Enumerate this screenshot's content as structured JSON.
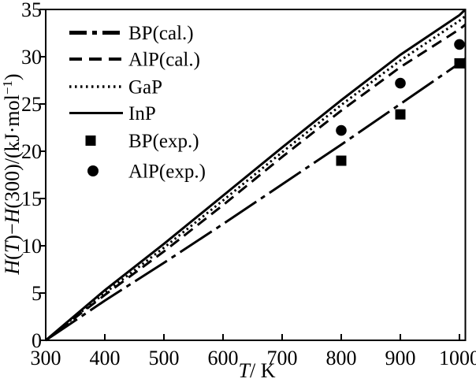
{
  "figure": {
    "background_color": "#ffffff",
    "ink_color": "#000000"
  },
  "chart_data": {
    "type": "line",
    "xlabel": "T/ K",
    "ylabel": "H(T)−H(300)/(kJ·mol−1)",
    "xlim": [
      300,
      1010
    ],
    "ylim": [
      0,
      35
    ],
    "x_ticks": [
      300,
      400,
      500,
      600,
      700,
      800,
      900,
      1000
    ],
    "y_ticks": [
      0,
      5,
      10,
      15,
      20,
      25,
      30,
      35
    ],
    "grid": false,
    "legend_position": "top-left-inside",
    "series": [
      {
        "name": "BP(cal.)",
        "style": "dashdot",
        "x": [
          300,
          400,
          500,
          600,
          700,
          800,
          900,
          1000,
          1010
        ],
        "y": [
          0,
          4.2,
          8.2,
          12.3,
          16.5,
          20.7,
          25.0,
          29.3,
          29.8
        ]
      },
      {
        "name": "AlP(cal.)",
        "style": "dashed",
        "x": [
          300,
          400,
          500,
          600,
          700,
          800,
          900,
          1000,
          1010
        ],
        "y": [
          0,
          4.8,
          9.4,
          14.3,
          19.4,
          24.3,
          28.9,
          32.9,
          33.4
        ]
      },
      {
        "name": "GaP",
        "style": "dotted",
        "x": [
          300,
          400,
          500,
          600,
          700,
          800,
          900,
          1000,
          1010
        ],
        "y": [
          0,
          5.0,
          9.8,
          14.8,
          19.9,
          24.9,
          29.6,
          33.8,
          34.3
        ]
      },
      {
        "name": "InP",
        "style": "solid",
        "x": [
          300,
          400,
          500,
          600,
          700,
          800,
          900,
          1000,
          1010
        ],
        "y": [
          0,
          5.3,
          10.2,
          15.3,
          20.4,
          25.4,
          30.2,
          34.4,
          35.0
        ]
      }
    ],
    "scatter_series": [
      {
        "name": "BP(exp.)",
        "marker": "square",
        "points": [
          [
            800,
            19.0
          ],
          [
            900,
            23.9
          ],
          [
            1000,
            29.3
          ]
        ]
      },
      {
        "name": "AlP(exp.)",
        "marker": "circle",
        "points": [
          [
            800,
            22.2
          ],
          [
            900,
            27.2
          ],
          [
            1000,
            31.3
          ]
        ]
      }
    ]
  },
  "labels": {
    "x_var": "T",
    "x_rest": "/ K",
    "y_h1": "H",
    "y_p1": "(",
    "y_t": "T",
    "y_p2": ")−",
    "y_h2": "H",
    "y_p3": "(300)/(kJ·mol",
    "y_sup": "−1",
    "y_p4": ")"
  }
}
